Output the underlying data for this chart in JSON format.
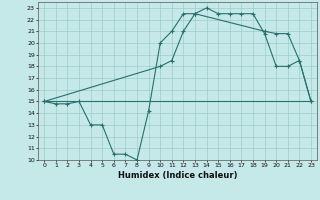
{
  "xlabel": "Humidex (Indice chaleur)",
  "background_color": "#c5e8e8",
  "grid_color": "#9ecece",
  "line_color": "#2a6e6e",
  "xlim": [
    -0.5,
    23.5
  ],
  "ylim": [
    10,
    23.5
  ],
  "yticks": [
    10,
    11,
    12,
    13,
    14,
    15,
    16,
    17,
    18,
    19,
    20,
    21,
    22,
    23
  ],
  "xticks": [
    0,
    1,
    2,
    3,
    4,
    5,
    6,
    7,
    8,
    9,
    10,
    11,
    12,
    13,
    14,
    15,
    16,
    17,
    18,
    19,
    20,
    21,
    22,
    23
  ],
  "line1_x": [
    0,
    1,
    2,
    3,
    4,
    5,
    6,
    7,
    8,
    9,
    10,
    11,
    12,
    13,
    14,
    15,
    16,
    17,
    18,
    19,
    20,
    21,
    22,
    23
  ],
  "line1_y": [
    15,
    14.8,
    14.8,
    15,
    13,
    13,
    10.5,
    10.5,
    10,
    14.2,
    20,
    21,
    22.5,
    22.5,
    23,
    22.5,
    22.5,
    22.5,
    22.5,
    20.8,
    18,
    18,
    18.5,
    15
  ],
  "line2_x": [
    0,
    10,
    11,
    12,
    13,
    19,
    20,
    21,
    22,
    23
  ],
  "line2_y": [
    15,
    18,
    18.5,
    21,
    22.5,
    21,
    20.8,
    20.8,
    18.5,
    15
  ],
  "line3_x": [
    0,
    23
  ],
  "line3_y": [
    15,
    15
  ]
}
